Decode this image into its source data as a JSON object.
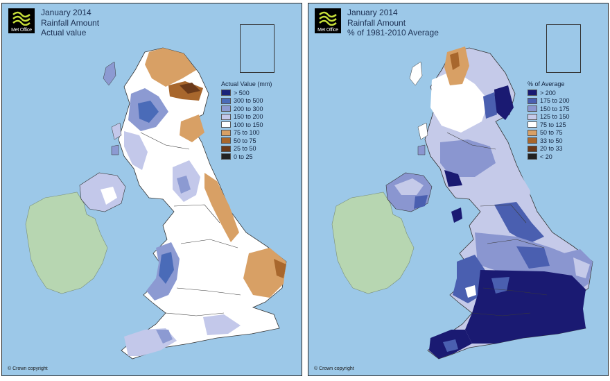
{
  "panels": [
    {
      "logo": {
        "text": "Met Office",
        "icon": "met-office-logo"
      },
      "title_lines": [
        "January 2014",
        "Rainfall Amount",
        "Actual value"
      ],
      "legend": {
        "title": "Actual Value (mm)",
        "items": [
          {
            "label": "> 500",
            "color": "#1a237a"
          },
          {
            "label": "300 to 500",
            "color": "#4a6bb8"
          },
          {
            "label": "200 to 300",
            "color": "#8c9ad2"
          },
          {
            "label": "150 to 200",
            "color": "#c3c8ea"
          },
          {
            "label": "100 to 150",
            "color": "#ffffff"
          },
          {
            "label": "75 to 100",
            "color": "#d8a065"
          },
          {
            "label": "50 to 75",
            "color": "#a8672d"
          },
          {
            "label": "25 to 50",
            "color": "#6b3a1a"
          },
          {
            "label": "0 to 25",
            "color": "#222222"
          }
        ]
      },
      "copyright": "© Crown copyright"
    },
    {
      "logo": {
        "text": "Met Office",
        "icon": "met-office-logo"
      },
      "title_lines": [
        "January 2014",
        "Rainfall Amount",
        "% of 1981-2010 Average"
      ],
      "legend": {
        "title": "% of Average",
        "items": [
          {
            "label": "> 200",
            "color": "#1a1a72"
          },
          {
            "label": "175 to 200",
            "color": "#4a5fb0"
          },
          {
            "label": "150 to 175",
            "color": "#8a96d0"
          },
          {
            "label": "125 to 150",
            "color": "#c5cae9"
          },
          {
            "label": "75 to 125",
            "color": "#ffffff"
          },
          {
            "label": "50 to 75",
            "color": "#d8a065"
          },
          {
            "label": "33 to 50",
            "color": "#a8672d"
          },
          {
            "label": "20 to 33",
            "color": "#6b3a1a"
          },
          {
            "label": "< 20",
            "color": "#222222"
          }
        ]
      },
      "copyright": "© Crown copyright"
    }
  ],
  "colors": {
    "sea": "#9cc8e8",
    "ireland": "#b7d6b1"
  }
}
